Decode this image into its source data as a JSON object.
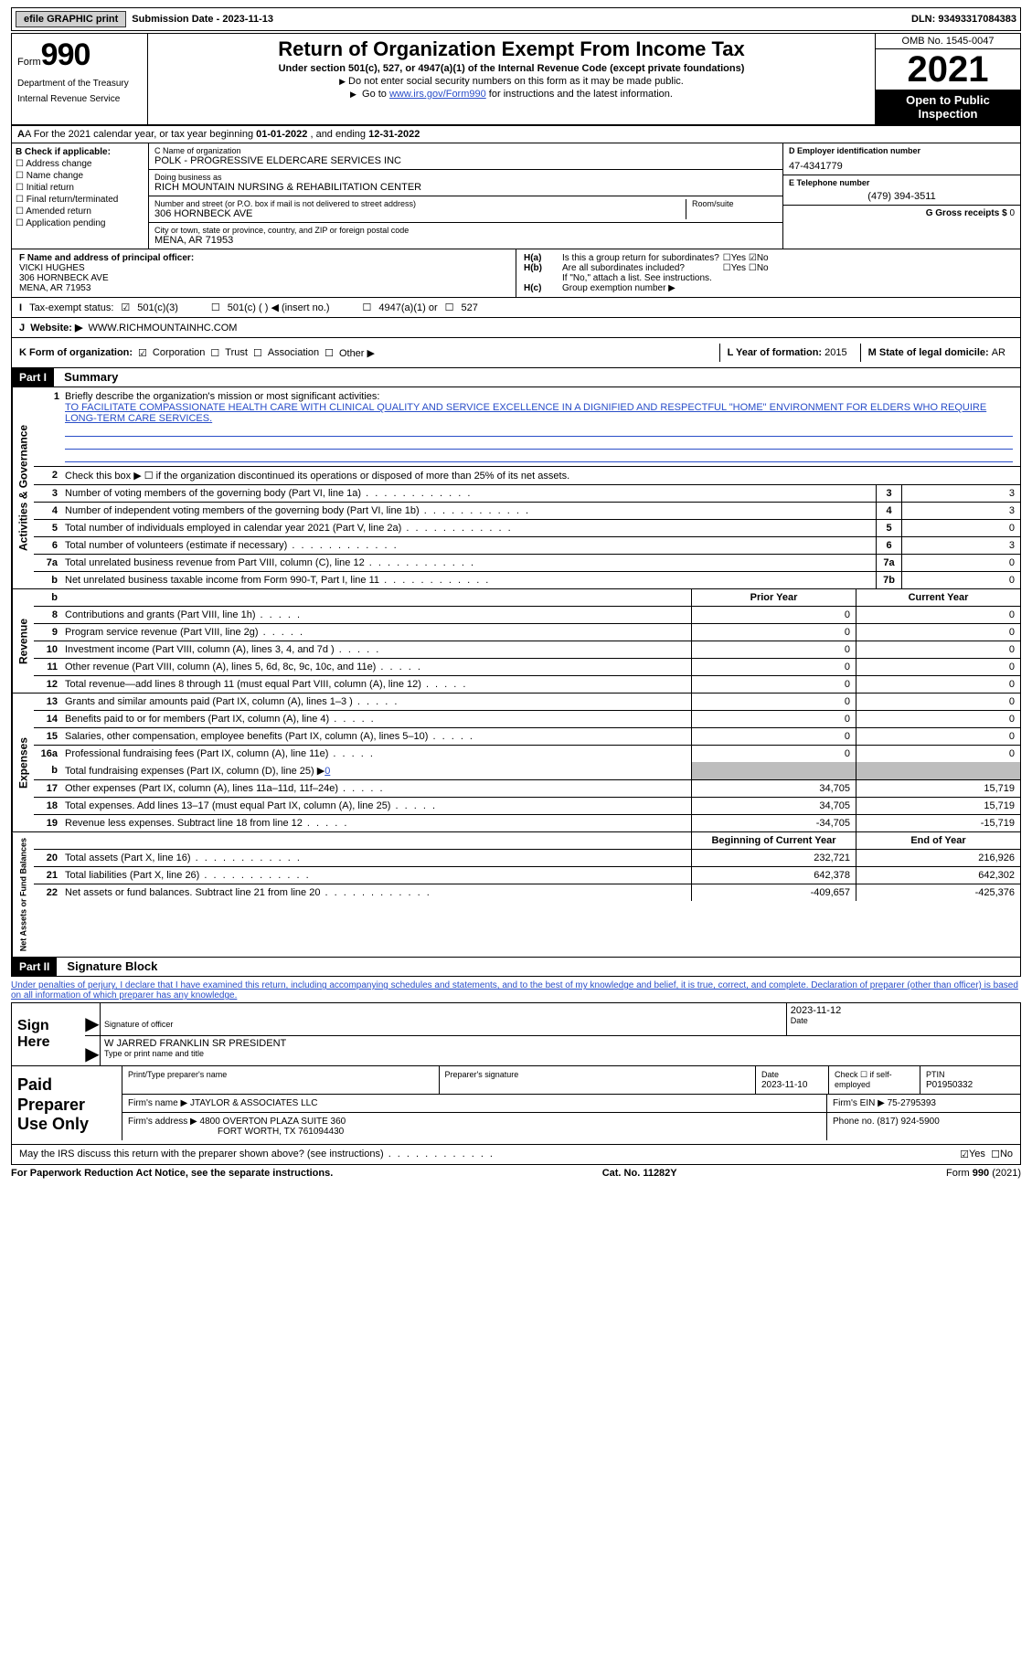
{
  "topbar": {
    "efile": "efile GRAPHIC print",
    "subdate_lbl": "Submission Date - ",
    "subdate": "2023-11-13",
    "dln_lbl": "DLN: ",
    "dln": "93493317084383"
  },
  "header": {
    "form_word": "Form",
    "form_num": "990",
    "title": "Return of Organization Exempt From Income Tax",
    "subtitle": "Under section 501(c), 527, or 4947(a)(1) of the Internal Revenue Code (except private foundations)",
    "line2": "Do not enter social security numbers on this form as it may be made public.",
    "line3a": "Go to ",
    "line3_link": "www.irs.gov/Form990",
    "line3b": " for instructions and the latest information.",
    "omb": "OMB No. 1545-0047",
    "year": "2021",
    "open1": "Open to Public",
    "open2": "Inspection",
    "dept": "Department of the Treasury",
    "irs": "Internal Revenue Service"
  },
  "A": {
    "text_a": "A For the 2021 calendar year, or tax year beginning ",
    "begin": "01-01-2022",
    "text_b": " , and ending ",
    "end": "12-31-2022"
  },
  "B": {
    "hdr": "B Check if applicable:",
    "opts": [
      "Address change",
      "Name change",
      "Initial return",
      "Final return/terminated",
      "Amended return",
      "Application pending"
    ]
  },
  "C": {
    "name_lbl": "C Name of organization",
    "name": "POLK - PROGRESSIVE ELDERCARE SERVICES INC",
    "dba_lbl": "Doing business as",
    "dba": "RICH MOUNTAIN NURSING & REHABILITATION CENTER",
    "street_lbl": "Number and street (or P.O. box if mail is not delivered to street address)",
    "room_lbl": "Room/suite",
    "street": "306 HORNBECK AVE",
    "city_lbl": "City or town, state or province, country, and ZIP or foreign postal code",
    "city": "MENA, AR  71953"
  },
  "D": {
    "ein_lbl": "D Employer identification number",
    "ein": "47-4341779",
    "tel_lbl": "E Telephone number",
    "tel": "(479) 394-3511",
    "gross_lbl": "G Gross receipts $ ",
    "gross": "0"
  },
  "F": {
    "lbl": "F  Name and address of principal officer:",
    "name": "VICKI HUGHES",
    "addr1": "306 HORNBECK AVE",
    "addr2": "MENA, AR  71953"
  },
  "H": {
    "a": "Is this a group return for subordinates?",
    "b": "Are all subordinates included?",
    "b2": "If \"No,\" attach a list. See instructions.",
    "c": "Group exemption number ▶",
    "yes": "Yes",
    "no": "No"
  },
  "I": {
    "lbl": "Tax-exempt status:",
    "o1": "501(c)(3)",
    "o2": "501(c) (  ) ◀ (insert no.)",
    "o3": "4947(a)(1) or",
    "o4": "527"
  },
  "J": {
    "lbl": "Website: ▶",
    "val": "WWW.RICHMOUNTAINHC.COM"
  },
  "K": {
    "lbl": "K Form of organization:",
    "o1": "Corporation",
    "o2": "Trust",
    "o3": "Association",
    "o4": "Other ▶"
  },
  "L": {
    "lbl": "L Year of formation: ",
    "val": "2015"
  },
  "M": {
    "lbl": "M State of legal domicile: ",
    "val": "AR"
  },
  "part1": {
    "hdr": "Part I",
    "title": "Summary"
  },
  "mission": {
    "lbl": "Briefly describe the organization's mission or most significant activities:",
    "text": "TO FACILITATE COMPASSIONATE HEALTH CARE WITH CLINICAL QUALITY AND SERVICE EXCELLENCE IN A DIGNIFIED AND RESPECTFUL \"HOME\" ENVIRONMENT FOR ELDERS WHO REQUIRE LONG-TERM CARE SERVICES."
  },
  "gov": {
    "vert": "Activities & Governance",
    "l2": "Check this box ▶ ☐  if the organization discontinued its operations or disposed of more than 25% of its net assets.",
    "rows": [
      {
        "n": "3",
        "t": "Number of voting members of the governing body (Part VI, line 1a)",
        "b": "3",
        "v": "3"
      },
      {
        "n": "4",
        "t": "Number of independent voting members of the governing body (Part VI, line 1b)",
        "b": "4",
        "v": "3"
      },
      {
        "n": "5",
        "t": "Total number of individuals employed in calendar year 2021 (Part V, line 2a)",
        "b": "5",
        "v": "0"
      },
      {
        "n": "6",
        "t": "Total number of volunteers (estimate if necessary)",
        "b": "6",
        "v": "3"
      },
      {
        "n": "7a",
        "t": "Total unrelated business revenue from Part VIII, column (C), line 12",
        "b": "7a",
        "v": "0"
      },
      {
        "n": "b",
        "t": "Net unrelated business taxable income from Form 990-T, Part I, line 11",
        "b": "7b",
        "v": "0"
      }
    ]
  },
  "rev": {
    "vert": "Revenue",
    "hdr_prior": "Prior Year",
    "hdr_curr": "Current Year",
    "rows": [
      {
        "n": "8",
        "t": "Contributions and grants (Part VIII, line 1h)",
        "p": "0",
        "c": "0"
      },
      {
        "n": "9",
        "t": "Program service revenue (Part VIII, line 2g)",
        "p": "0",
        "c": "0"
      },
      {
        "n": "10",
        "t": "Investment income (Part VIII, column (A), lines 3, 4, and 7d )",
        "p": "0",
        "c": "0"
      },
      {
        "n": "11",
        "t": "Other revenue (Part VIII, column (A), lines 5, 6d, 8c, 9c, 10c, and 11e)",
        "p": "0",
        "c": "0"
      },
      {
        "n": "12",
        "t": "Total revenue—add lines 8 through 11 (must equal Part VIII, column (A), line 12)",
        "p": "0",
        "c": "0"
      }
    ]
  },
  "exp": {
    "vert": "Expenses",
    "rows": [
      {
        "n": "13",
        "t": "Grants and similar amounts paid (Part IX, column (A), lines 1–3 )",
        "p": "0",
        "c": "0"
      },
      {
        "n": "14",
        "t": "Benefits paid to or for members (Part IX, column (A), line 4)",
        "p": "0",
        "c": "0"
      },
      {
        "n": "15",
        "t": "Salaries, other compensation, employee benefits (Part IX, column (A), lines 5–10)",
        "p": "0",
        "c": "0"
      },
      {
        "n": "16a",
        "t": "Professional fundraising fees (Part IX, column (A), line 11e)",
        "p": "0",
        "c": "0"
      }
    ],
    "l16b_a": "Total fundraising expenses (Part IX, column (D), line 25) ▶",
    "l16b_v": "0",
    "rows2": [
      {
        "n": "17",
        "t": "Other expenses (Part IX, column (A), lines 11a–11d, 11f–24e)",
        "p": "34,705",
        "c": "15,719"
      },
      {
        "n": "18",
        "t": "Total expenses. Add lines 13–17 (must equal Part IX, column (A), line 25)",
        "p": "34,705",
        "c": "15,719"
      },
      {
        "n": "19",
        "t": "Revenue less expenses. Subtract line 18 from line 12",
        "p": "-34,705",
        "c": "-15,719"
      }
    ]
  },
  "net": {
    "vert": "Net Assets or Fund Balances",
    "hdr_begin": "Beginning of Current Year",
    "hdr_end": "End of Year",
    "rows": [
      {
        "n": "20",
        "t": "Total assets (Part X, line 16)",
        "p": "232,721",
        "c": "216,926"
      },
      {
        "n": "21",
        "t": "Total liabilities (Part X, line 26)",
        "p": "642,378",
        "c": "642,302"
      },
      {
        "n": "22",
        "t": "Net assets or fund balances. Subtract line 21 from line 20",
        "p": "-409,657",
        "c": "-425,376"
      }
    ]
  },
  "part2": {
    "hdr": "Part II",
    "title": "Signature Block",
    "decl": "Under penalties of perjury, I declare that I have examined this return, including accompanying schedules and statements, and to the best of my knowledge and belief, it is true, correct, and complete. Declaration of preparer (other than officer) is based on all information of which preparer has any knowledge."
  },
  "sign": {
    "here": "Sign Here",
    "sig_lbl": "Signature of officer",
    "date_lbl": "Date",
    "date": "2023-11-12",
    "name": "W JARRED FRANKLIN SR PRESIDENT",
    "name_lbl": "Type or print name and title"
  },
  "prep": {
    "left": "Paid Preparer Use Only",
    "r1c1": "Print/Type preparer's name",
    "r1c2": "Preparer's signature",
    "r1c3_lbl": "Date",
    "r1c3": "2023-11-10",
    "r1c4": "Check ☐ if self-employed",
    "r1c5_lbl": "PTIN",
    "r1c5": "P01950332",
    "r2a": "Firm's name     ▶ ",
    "r2a_v": "JTAYLOR & ASSOCIATES LLC",
    "r2b": "Firm's EIN ▶ ",
    "r2b_v": "75-2795393",
    "r3a": "Firm's address ▶ ",
    "r3a_v1": "4800 OVERTON PLAZA SUITE 360",
    "r3a_v2": "FORT WORTH, TX  761094430",
    "r3b": "Phone no. ",
    "r3b_v": "(817) 924-5900"
  },
  "footer": {
    "q": "May the IRS discuss this return with the preparer shown above? (see instructions)",
    "yes": "Yes",
    "no": "No",
    "pra": "For Paperwork Reduction Act Notice, see the separate instructions.",
    "cat": "Cat. No. 11282Y",
    "form": "Form 990 (2021)"
  }
}
